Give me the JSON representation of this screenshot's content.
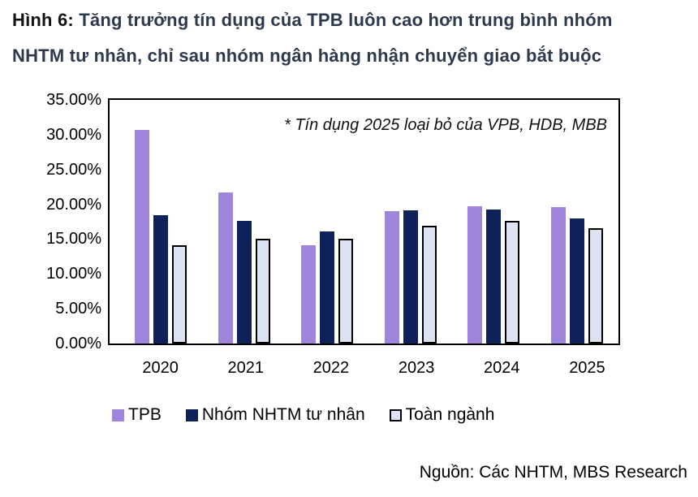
{
  "title": {
    "prefix": "Hình 6:",
    "line1_rest": " Tăng trưởng tín dụng của TPB luôn cao hơn trung bình nhóm",
    "line2": "NHTM tư nhân, chỉ sau nhóm ngân hàng nhận chuyển giao bắt buộc"
  },
  "annotation": "* Tín dụng 2025 loại bỏ của VPB, HDB, MBB",
  "source": "Nguồn: Các NHTM, MBS Research",
  "colors": {
    "tpb": "#9f86dc",
    "private_group": "#0e2159",
    "industry_fill": "#dde3f2",
    "industry_border": "#000000",
    "plot_border": "#000000",
    "title_text": "#2d3a4e"
  },
  "chart_data": {
    "type": "bar",
    "categories": [
      "2020",
      "2021",
      "2022",
      "2023",
      "2024",
      "2025"
    ],
    "series": [
      {
        "name": "TPB",
        "fill": "#9f86dc",
        "border": "",
        "values": [
          30.7,
          21.7,
          14.1,
          19.0,
          19.7,
          19.6
        ]
      },
      {
        "name": "Nhóm NHTM tư nhân",
        "fill": "#0e2159",
        "border": "",
        "values": [
          18.4,
          17.6,
          16.1,
          19.1,
          19.2,
          18.0
        ]
      },
      {
        "name": "Toàn ngành",
        "fill": "#dde3f2",
        "border": "#000000",
        "values": [
          14.1,
          15.1,
          15.1,
          16.9,
          17.6,
          16.6
        ]
      }
    ],
    "value_unit": "percent",
    "ylim": [
      0,
      35
    ],
    "yticks": [
      {
        "value": 35,
        "label": "35.00%"
      },
      {
        "value": 30,
        "label": "30.00%"
      },
      {
        "value": 25,
        "label": "25.00%"
      },
      {
        "value": 20,
        "label": "20.00%"
      },
      {
        "value": 15,
        "label": "15.00%"
      },
      {
        "value": 10,
        "label": "10.00%"
      },
      {
        "value": 5,
        "label": "5.00%"
      },
      {
        "value": 0,
        "label": "0.00%"
      }
    ],
    "grid": false,
    "legend_position": "bottom"
  }
}
